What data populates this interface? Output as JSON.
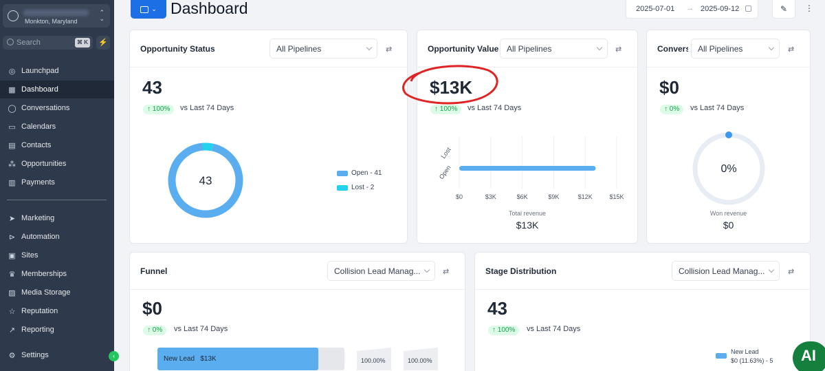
{
  "sidebar": {
    "location_sub": "Monkton, Maryland",
    "search_placeholder": "Search",
    "search_shortcut": "⌘ K",
    "items": [
      {
        "label": "Launchpad",
        "icon": "rocket-icon"
      },
      {
        "label": "Dashboard",
        "icon": "grid-icon",
        "active": true
      },
      {
        "label": "Conversations",
        "icon": "chat-icon"
      },
      {
        "label": "Calendars",
        "icon": "calendar-icon"
      },
      {
        "label": "Contacts",
        "icon": "contacts-icon"
      },
      {
        "label": "Opportunities",
        "icon": "network-icon"
      },
      {
        "label": "Payments",
        "icon": "receipt-icon"
      }
    ],
    "items2": [
      {
        "label": "Marketing",
        "icon": "send-icon"
      },
      {
        "label": "Automation",
        "icon": "automation-icon"
      },
      {
        "label": "Sites",
        "icon": "sites-icon"
      },
      {
        "label": "Memberships",
        "icon": "membership-icon"
      },
      {
        "label": "Media Storage",
        "icon": "image-icon"
      },
      {
        "label": "Reputation",
        "icon": "star-icon"
      },
      {
        "label": "Reporting",
        "icon": "trend-icon"
      }
    ],
    "settings_label": "Settings"
  },
  "header": {
    "title": "Dashboard",
    "date_start": "2025-07-01",
    "date_end": "2025-09-12"
  },
  "cards": {
    "opportunity_status": {
      "title": "Opportunity Status",
      "dropdown": "All Pipelines",
      "value": "43",
      "change": "↑ 100%",
      "compare": "vs Last 74 Days",
      "donut_center": "43",
      "legend": [
        {
          "label": "Open - 41",
          "value": 41,
          "color": "#5aaef0"
        },
        {
          "label": "Lost - 2",
          "value": 2,
          "color": "#22d3ee"
        }
      ]
    },
    "opportunity_value": {
      "title": "Opportunity Value",
      "dropdown": "All Pipelines",
      "value": "$13K",
      "change": "↑ 100%",
      "compare": "vs Last 74 Days",
      "total_label": "Total revenue",
      "total_value": "$13K"
    },
    "conversion": {
      "title": "Conversion",
      "dropdown": "All Pipelines",
      "value": "$0",
      "change": "↑ 0%",
      "compare": "vs Last 74 Days",
      "gauge_center": "0%",
      "won_label": "Won revenue",
      "won_value": "$0"
    },
    "funnel": {
      "title": "Funnel",
      "dropdown": "Collision Lead Manag...",
      "value": "$0",
      "change": "↑ 0%",
      "compare": "vs Last 74 Days",
      "bar_label": "New Lead",
      "bar_value": "$13K",
      "pct1": "100.00%",
      "pct2": "100.00%"
    },
    "stage_distribution": {
      "title": "Stage Distribution",
      "dropdown": "Collision Lead Manag...",
      "value": "43",
      "change": "↑ 100%",
      "compare": "vs Last 74 Days",
      "legend_label": "New Lead",
      "legend_value": "$0 (11.63%) - 5"
    }
  },
  "chart_data": {
    "type": "bar",
    "orientation": "horizontal",
    "categories": [
      "Lost",
      "Open"
    ],
    "values": [
      0,
      13000
    ],
    "xticks": [
      "$0",
      "$3K",
      "$6K",
      "$9K",
      "$12K",
      "$15K"
    ],
    "xlim": [
      0,
      15000
    ]
  },
  "ai_label": "AI",
  "colors": {
    "primary": "#1d6fe6",
    "sidebar": "#2e3a4b",
    "open": "#5aaef0",
    "lost": "#22d3ee",
    "highlight": "#e02424"
  }
}
